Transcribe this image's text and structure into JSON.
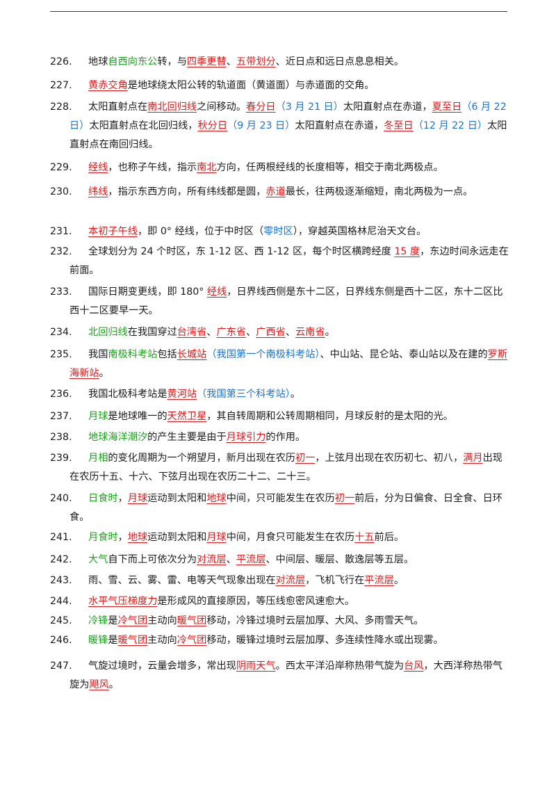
{
  "items": [
    {
      "number": "226.",
      "segments": [
        {
          "t": "地球"
        },
        {
          "t": "自西向东公",
          "s": "g"
        },
        {
          "t": "转，与"
        },
        {
          "t": "四季更替",
          "s": "r"
        },
        {
          "t": "、"
        },
        {
          "t": "五带划分",
          "s": "r"
        },
        {
          "t": "、近日点和远日点息息相关。"
        }
      ]
    },
    {
      "number": "227.",
      "segments": [
        {
          "t": "黄赤交角",
          "s": "r"
        },
        {
          "t": "是地球绕太阳公转的轨道面（黄道面）与赤道面的交角。"
        }
      ]
    },
    {
      "number": "228.",
      "segments": [
        {
          "t": "太阳直射点在"
        },
        {
          "t": "南北回归线",
          "s": "r"
        },
        {
          "t": "之间移动。"
        },
        {
          "t": "春分日",
          "s": "r"
        },
        {
          "t": "（3 月 21 日）",
          "s": "b"
        },
        {
          "t": "太阳直射点在赤道，"
        },
        {
          "t": "夏至日",
          "s": "r"
        },
        {
          "t": "（6 月 22 日）",
          "s": "b"
        },
        {
          "t": "太阳直射点在北回归线，"
        },
        {
          "t": "秋分日",
          "s": "r"
        },
        {
          "t": "（9 月 23 日）",
          "s": "b"
        },
        {
          "t": "太阳直射点在赤道，"
        },
        {
          "t": "冬至日",
          "s": "r"
        },
        {
          "t": "（12 月 22 日）",
          "s": "b"
        },
        {
          "t": "太阳直射点在南回归线。"
        }
      ]
    },
    {
      "number": "229.",
      "segments": [
        {
          "t": "经线",
          "s": "r"
        },
        {
          "t": "，也称子午线，指示"
        },
        {
          "t": "南北",
          "s": "r"
        },
        {
          "t": "方向，任两根经线的长度相等，相交于南北两极点。"
        }
      ]
    },
    {
      "number": "230.",
      "segments": [
        {
          "t": "纬线",
          "s": "r"
        },
        {
          "t": "，指示东西方向，所有纬线都是圆，"
        },
        {
          "t": "赤道",
          "s": "r"
        },
        {
          "t": "最长，往两极逐渐缩短，南北两极为一点。"
        }
      ]
    },
    {
      "number": "231.",
      "segments": [
        {
          "t": "本初子午线",
          "s": "r"
        },
        {
          "t": "，即 0° 经线，位于中时区（"
        },
        {
          "t": "零时区",
          "s": "b"
        },
        {
          "t": "），穿越英国格林尼治天文台。"
        }
      ]
    },
    {
      "number": "232.",
      "segments": [
        {
          "t": "全球划分为 24 个时区，东 1-12 区、西 1-12 区，每个时区横跨经度 "
        },
        {
          "t": "15 度",
          "s": "r"
        },
        {
          "t": "，东边时间永远走在前面。"
        }
      ]
    },
    {
      "number": "233.",
      "segments": [
        {
          "t": "国际日期变更线，即 180° "
        },
        {
          "t": "经线",
          "s": "r"
        },
        {
          "t": "，日界线西侧是东十二区，日界线东侧是西十二区，东十二区比西十二区要早一天。"
        }
      ]
    },
    {
      "number": "234.",
      "segments": [
        {
          "t": "北回归线",
          "s": "g"
        },
        {
          "t": "在我国穿过"
        },
        {
          "t": "台湾省",
          "s": "r"
        },
        {
          "t": "、"
        },
        {
          "t": "广东省",
          "s": "r"
        },
        {
          "t": "、"
        },
        {
          "t": "广西省",
          "s": "r"
        },
        {
          "t": "、"
        },
        {
          "t": "云南省",
          "s": "r"
        },
        {
          "t": "。"
        }
      ]
    },
    {
      "number": "235.",
      "segments": [
        {
          "t": "我国"
        },
        {
          "t": "南极科考站",
          "s": "g"
        },
        {
          "t": "包括"
        },
        {
          "t": "长城站",
          "s": "r"
        },
        {
          "t": "（我国第一个南极科考站）",
          "s": "b"
        },
        {
          "t": "、中山站、昆仑站、泰山站以及在建的"
        },
        {
          "t": "罗斯海新站",
          "s": "r"
        },
        {
          "t": "。"
        }
      ]
    },
    {
      "number": "236.",
      "segments": [
        {
          "t": "我国北极科考站是"
        },
        {
          "t": "黄河站",
          "s": "r"
        },
        {
          "t": "（我国第三个科考站）",
          "s": "b"
        },
        {
          "t": "。"
        }
      ]
    },
    {
      "number": "237.",
      "segments": [
        {
          "t": "月球",
          "s": "g"
        },
        {
          "t": "是地球唯一的"
        },
        {
          "t": "天然卫星",
          "s": "r"
        },
        {
          "t": "，其自转周期和公转周期相同，月球反射的是太阳的光。"
        }
      ]
    },
    {
      "number": "238.",
      "segments": [
        {
          "t": "地球海洋潮汐",
          "s": "g"
        },
        {
          "t": "的产生主要是由于"
        },
        {
          "t": "月球引力",
          "s": "r"
        },
        {
          "t": "的作用。"
        }
      ]
    },
    {
      "number": "239.",
      "segments": [
        {
          "t": "月相",
          "s": "g"
        },
        {
          "t": "的变化周期为一个朔望月，新月出现在农历"
        },
        {
          "t": "初一",
          "s": "r"
        },
        {
          "t": "，上弦月出现在农历初七、初八，"
        },
        {
          "t": "满月",
          "s": "r"
        },
        {
          "t": "出现在农历十五、十六、下弦月出现在农历二十二、二十三。"
        }
      ]
    },
    {
      "number": "240.",
      "segments": [
        {
          "t": "日食时",
          "s": "g"
        },
        {
          "t": "，"
        },
        {
          "t": "月球",
          "s": "r"
        },
        {
          "t": "运动到太阳和"
        },
        {
          "t": "地球",
          "s": "r"
        },
        {
          "t": "中间，只可能发生在农历"
        },
        {
          "t": "初一",
          "s": "r"
        },
        {
          "t": "前后，分为日偏食、日全食、日环食。"
        }
      ]
    },
    {
      "number": "241.",
      "segments": [
        {
          "t": "月食时",
          "s": "g"
        },
        {
          "t": "，"
        },
        {
          "t": "地球",
          "s": "r"
        },
        {
          "t": "运动到太阳和"
        },
        {
          "t": "月球",
          "s": "r"
        },
        {
          "t": "中间，月食只可能发生在农历"
        },
        {
          "t": "十五",
          "s": "r"
        },
        {
          "t": "前后。"
        }
      ]
    },
    {
      "number": "242.",
      "segments": [
        {
          "t": "大气",
          "s": "g"
        },
        {
          "t": "自下而上可依次分为"
        },
        {
          "t": "对流层",
          "s": "r"
        },
        {
          "t": "、"
        },
        {
          "t": "平流层",
          "s": "r"
        },
        {
          "t": "、中间层、暖层、散逸层等五层。"
        }
      ]
    },
    {
      "number": "243.",
      "segments": [
        {
          "t": "雨、雪、云、雾、雷、电等天气现象出现在"
        },
        {
          "t": "对流层",
          "s": "r"
        },
        {
          "t": "，飞机飞行在"
        },
        {
          "t": "平流层",
          "s": "r"
        },
        {
          "t": "。"
        }
      ]
    },
    {
      "number": "244.",
      "segments": [
        {
          "t": "水平气压梯度力",
          "s": "r"
        },
        {
          "t": "是形成风的直接原因，等压线愈密风速愈大。"
        }
      ]
    },
    {
      "number": "245.",
      "segments": [
        {
          "t": "冷锋",
          "s": "g"
        },
        {
          "t": "是"
        },
        {
          "t": "冷气团",
          "s": "r"
        },
        {
          "t": "主动向"
        },
        {
          "t": "暖气团",
          "s": "r"
        },
        {
          "t": "移动，冷锋过境时云层加厚、大风、多雨雪天气。"
        }
      ]
    },
    {
      "number": "246.",
      "segments": [
        {
          "t": "暖锋",
          "s": "g"
        },
        {
          "t": "是"
        },
        {
          "t": "暖气团",
          "s": "r"
        },
        {
          "t": "主动向"
        },
        {
          "t": "冷气团",
          "s": "r"
        },
        {
          "t": "移动，暖锋过境时云层加厚、多连续性降水或出现雾。"
        }
      ]
    },
    {
      "number": "247.",
      "segments": [
        {
          "t": "气旋过境时，云量会增多，常出现"
        },
        {
          "t": "阴雨天气",
          "s": "r"
        },
        {
          "t": "。西太平洋沿岸称热带气旋为"
        },
        {
          "t": "台风",
          "s": "r"
        },
        {
          "t": "，大西洋称热带气旋为"
        },
        {
          "t": "飓风",
          "s": "r"
        },
        {
          "t": "。"
        }
      ]
    }
  ]
}
